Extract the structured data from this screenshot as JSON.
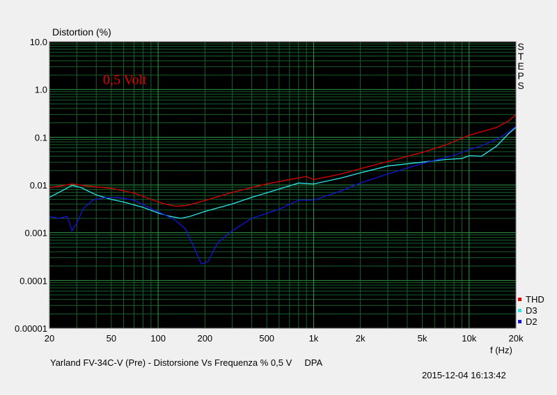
{
  "chart_data": {
    "type": "line",
    "title": "",
    "ylabel": "Distortion (%)",
    "xlabel": "f (Hz)",
    "xscale": "log",
    "yscale": "log",
    "xlim": [
      20,
      20000
    ],
    "ylim": [
      1e-05,
      10
    ],
    "grid": true,
    "annotation": "0,5 Volt",
    "side_label": "STEPS",
    "x_ticks": [
      {
        "value": 20,
        "label": "20"
      },
      {
        "value": 50,
        "label": "50"
      },
      {
        "value": 100,
        "label": "100"
      },
      {
        "value": 200,
        "label": "200"
      },
      {
        "value": 500,
        "label": "500"
      },
      {
        "value": 1000,
        "label": "1k"
      },
      {
        "value": 2000,
        "label": "2k"
      },
      {
        "value": 5000,
        "label": "5k"
      },
      {
        "value": 10000,
        "label": "10k"
      },
      {
        "value": 20000,
        "label": "20k"
      }
    ],
    "y_ticks": [
      {
        "value": 10,
        "label": "10.0"
      },
      {
        "value": 1,
        "label": "1.0"
      },
      {
        "value": 0.1,
        "label": "0.1"
      },
      {
        "value": 0.01,
        "label": "0.01"
      },
      {
        "value": 0.001,
        "label": "0.001"
      },
      {
        "value": 0.0001,
        "label": "0.0001"
      },
      {
        "value": 1e-05,
        "label": "0.00001"
      }
    ],
    "legend_position": "bottom-right",
    "series": [
      {
        "name": "THD",
        "color": "#e00000",
        "x": [
          20,
          25,
          28,
          35,
          50,
          70,
          90,
          110,
          130,
          150,
          180,
          220,
          300,
          400,
          500,
          700,
          900,
          1000,
          1500,
          2000,
          3000,
          5000,
          7000,
          10000,
          12000,
          15000,
          18000,
          20000
        ],
        "y": [
          0.0088,
          0.0098,
          0.0105,
          0.0095,
          0.0085,
          0.0068,
          0.005,
          0.004,
          0.0036,
          0.0037,
          0.0043,
          0.0052,
          0.007,
          0.0088,
          0.0105,
          0.013,
          0.015,
          0.013,
          0.017,
          0.022,
          0.031,
          0.048,
          0.068,
          0.11,
          0.13,
          0.16,
          0.22,
          0.3
        ]
      },
      {
        "name": "D3",
        "color": "#2ee6e6",
        "x": [
          20,
          24,
          28,
          32,
          40,
          50,
          60,
          80,
          100,
          120,
          140,
          160,
          200,
          300,
          400,
          600,
          800,
          1000,
          1500,
          2000,
          3000,
          5000,
          7000,
          9000,
          10000,
          12000,
          15000,
          18000,
          20000
        ],
        "y": [
          0.0055,
          0.0075,
          0.0098,
          0.0088,
          0.0062,
          0.005,
          0.0044,
          0.0034,
          0.0026,
          0.0022,
          0.002,
          0.0022,
          0.0028,
          0.004,
          0.0055,
          0.0082,
          0.011,
          0.0105,
          0.014,
          0.018,
          0.025,
          0.03,
          0.034,
          0.036,
          0.041,
          0.04,
          0.065,
          0.12,
          0.16
        ]
      },
      {
        "name": "D2",
        "color": "#1515d8",
        "x": [
          20,
          23,
          26,
          28,
          30,
          33,
          38,
          45,
          55,
          70,
          90,
          110,
          130,
          150,
          170,
          190,
          210,
          240,
          300,
          400,
          600,
          800,
          1000,
          1500,
          2000,
          3000,
          5000,
          8000,
          10000,
          12000,
          15000,
          18000,
          20000
        ],
        "y": [
          0.0022,
          0.002,
          0.0022,
          0.0011,
          0.0016,
          0.0032,
          0.0048,
          0.0054,
          0.0055,
          0.0048,
          0.0032,
          0.0024,
          0.0018,
          0.0012,
          0.0005,
          0.00022,
          0.00025,
          0.0006,
          0.0011,
          0.002,
          0.0031,
          0.0048,
          0.0048,
          0.0075,
          0.011,
          0.017,
          0.028,
          0.042,
          0.055,
          0.066,
          0.09,
          0.13,
          0.17
        ]
      }
    ]
  },
  "footer": {
    "caption": "Yarland FV-34C-V (Pre) - Distorsione Vs Frequenza % 0,5 V     DPA",
    "timestamp": "2015-12-04 16:13:42"
  }
}
